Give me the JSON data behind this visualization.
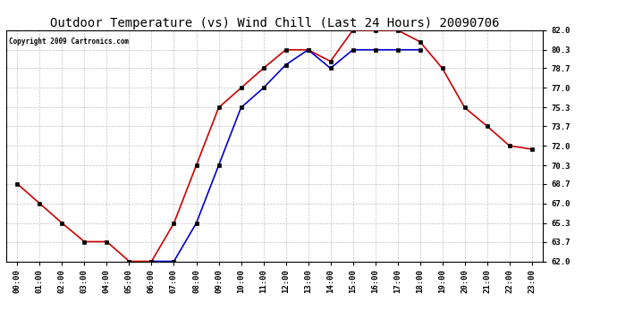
{
  "title": "Outdoor Temperature (vs) Wind Chill (Last 24 Hours) 20090706",
  "copyright": "Copyright 2009 Cartronics.com",
  "background_color": "#ffffff",
  "grid_color": "#bbbbbb",
  "ylim": [
    62.0,
    82.0
  ],
  "yticks": [
    62.0,
    63.7,
    65.3,
    67.0,
    68.7,
    70.3,
    72.0,
    73.7,
    75.3,
    77.0,
    78.7,
    80.3,
    82.0
  ],
  "hours": [
    0,
    1,
    2,
    3,
    4,
    5,
    6,
    7,
    8,
    9,
    10,
    11,
    12,
    13,
    14,
    15,
    16,
    17,
    18,
    19,
    20,
    21,
    22,
    23
  ],
  "temp": [
    68.7,
    67.0,
    65.3,
    63.7,
    63.7,
    62.0,
    62.0,
    65.3,
    70.3,
    75.3,
    77.0,
    78.7,
    80.3,
    80.3,
    79.3,
    82.0,
    82.0,
    82.0,
    81.0,
    78.7,
    75.3,
    73.7,
    72.0,
    71.7
  ],
  "wc_hours": [
    6,
    7,
    8,
    9,
    10,
    11,
    12,
    13,
    14,
    15,
    16,
    17,
    18
  ],
  "wc_vals": [
    62.0,
    62.0,
    65.3,
    70.3,
    75.3,
    77.0,
    79.0,
    80.3,
    78.7,
    80.3,
    80.3,
    80.3,
    80.3
  ],
  "temp_color": "#cc0000",
  "windchill_color": "#0000cc",
  "marker_size": 3,
  "line_width": 1.2,
  "title_fontsize": 10,
  "tick_fontsize": 6.5,
  "copyright_fontsize": 5.5
}
